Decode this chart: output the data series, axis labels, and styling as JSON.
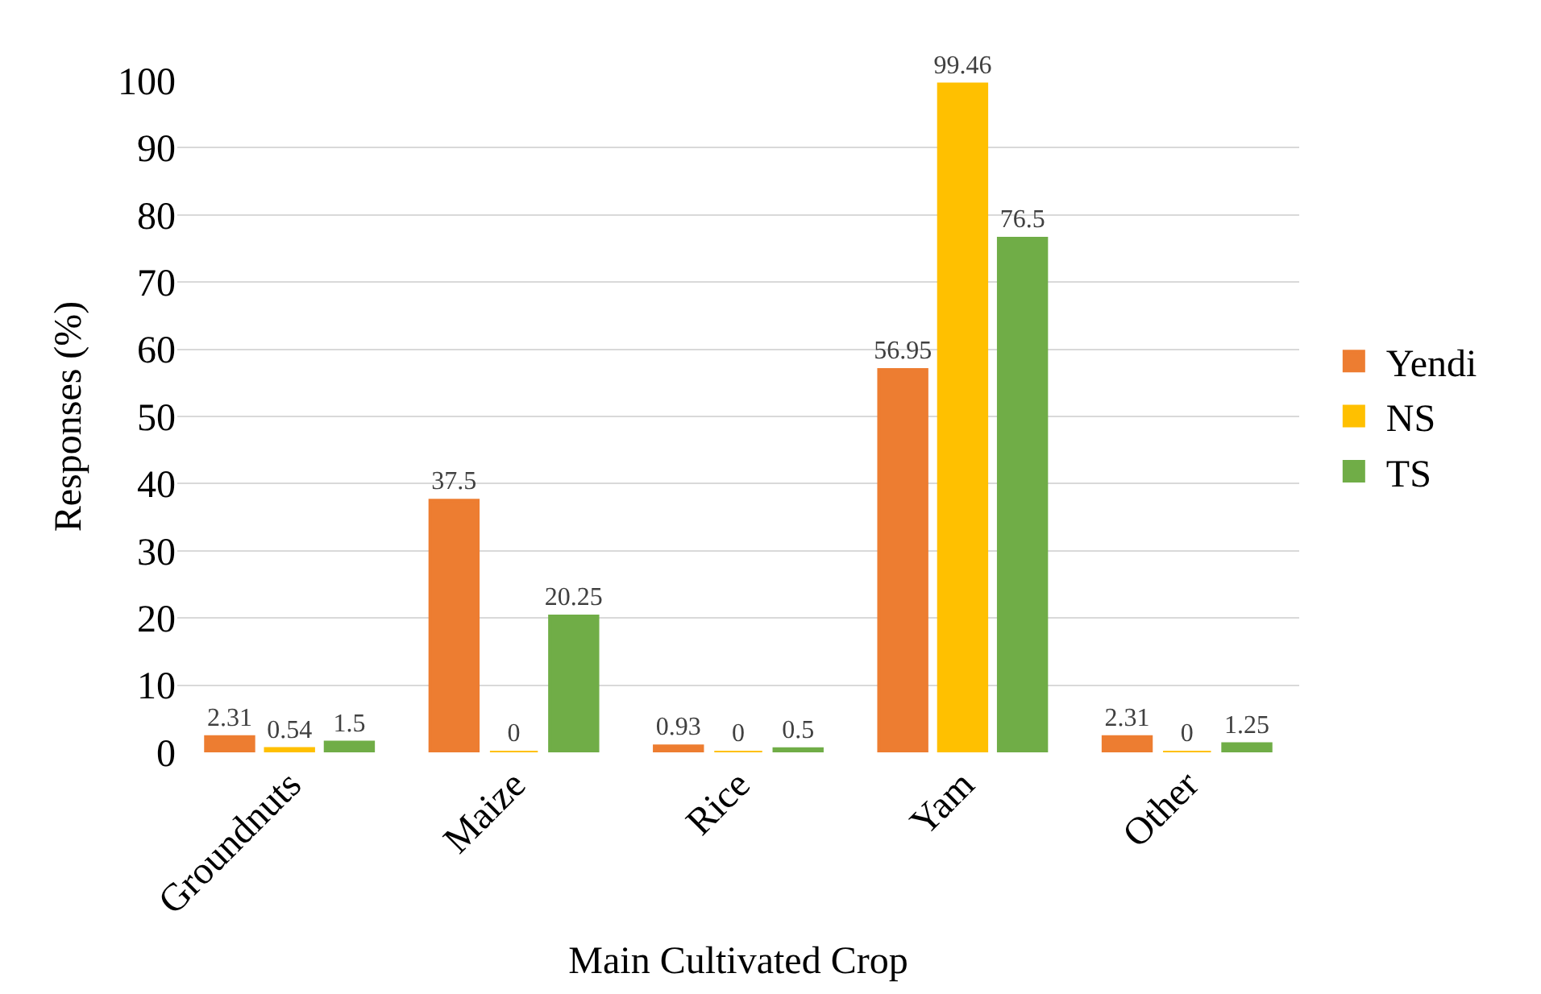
{
  "chart_data": {
    "type": "bar",
    "xlabel": "Main Cultivated Crop",
    "ylabel": "Responses (%)",
    "categories": [
      "Groundnuts",
      "Maize",
      "Rice",
      "Yam",
      "Other"
    ],
    "series": [
      {
        "name": "Yendi",
        "color": "#ed7d31",
        "values": [
          2.31,
          37.5,
          0.93,
          56.95,
          2.31
        ]
      },
      {
        "name": "NS",
        "color": "#ffc000",
        "values": [
          0.54,
          0,
          0,
          99.46,
          0
        ]
      },
      {
        "name": "TS",
        "color": "#70ad47",
        "values": [
          1.5,
          20.25,
          0.5,
          76.5,
          1.25
        ]
      }
    ],
    "ylim": [
      0,
      100
    ],
    "yticks": [
      0,
      10,
      20,
      30,
      40,
      50,
      60,
      70,
      80,
      90,
      100
    ],
    "grid": "y",
    "legend": "right",
    "data_labels": true
  }
}
